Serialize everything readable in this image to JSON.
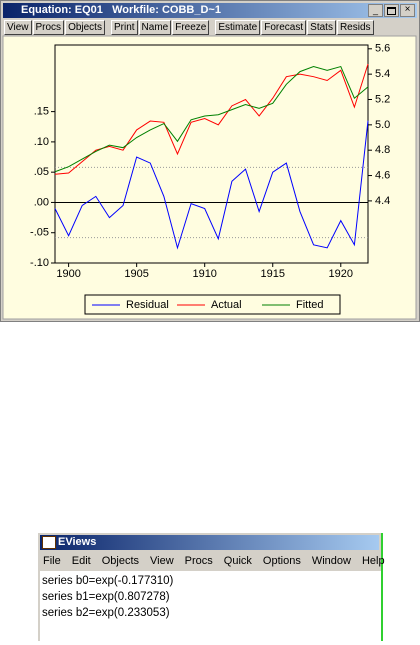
{
  "window": {
    "title": "Equation: EQ01   Workfile: COBB_D~1",
    "buttons": [
      "View",
      "Procs",
      "Objects",
      "Print",
      "Name",
      "Freeze",
      "Estimate",
      "Forecast",
      "Stats",
      "Resids"
    ]
  },
  "chart_data": {
    "type": "line",
    "x": [
      1899,
      1900,
      1901,
      1902,
      1903,
      1904,
      1905,
      1906,
      1907,
      1908,
      1909,
      1910,
      1911,
      1912,
      1913,
      1914,
      1915,
      1916,
      1917,
      1918,
      1919,
      1920,
      1921,
      1922
    ],
    "series": [
      {
        "name": "Residual",
        "color": "#0000ff",
        "axis": "y",
        "values": [
          -0.01,
          -0.055,
          -0.005,
          0.01,
          -0.025,
          -0.005,
          0.075,
          0.065,
          0.01,
          -0.075,
          -0.002,
          -0.01,
          -0.06,
          0.035,
          0.055,
          -0.015,
          0.05,
          0.065,
          -0.015,
          -0.07,
          -0.075,
          -0.03,
          -0.07,
          0.135
        ]
      },
      {
        "name": "Actual",
        "color": "#ff0000",
        "axis": "y2",
        "values": [
          4.61,
          4.62,
          4.71,
          4.8,
          4.83,
          4.8,
          4.96,
          5.03,
          5.02,
          4.77,
          5.02,
          5.05,
          5.0,
          5.15,
          5.2,
          5.07,
          5.21,
          5.38,
          5.4,
          5.38,
          5.35,
          5.43,
          5.14,
          5.48
        ]
      },
      {
        "name": "Fitted",
        "color": "#008000",
        "axis": "y2",
        "values": [
          4.63,
          4.67,
          4.73,
          4.79,
          4.84,
          4.82,
          4.9,
          4.96,
          5.01,
          4.87,
          5.04,
          5.07,
          5.08,
          5.12,
          5.16,
          5.13,
          5.17,
          5.32,
          5.42,
          5.46,
          5.43,
          5.46,
          5.21,
          5.3
        ]
      }
    ],
    "xlim": [
      1899,
      1922
    ],
    "xticks": [
      1900,
      1905,
      1910,
      1915,
      1920
    ],
    "ylim": [
      -0.1,
      0.26
    ],
    "yticks": [
      {
        "value": -0.1,
        "label": "-.10"
      },
      {
        "value": -0.05,
        "label": "-.05"
      },
      {
        "value": 0,
        "label": ".00"
      },
      {
        "value": 0.05,
        "label": ".05"
      },
      {
        "value": 0.1,
        "label": ".10"
      },
      {
        "value": 0.15,
        "label": ".15"
      }
    ],
    "y2lim": [
      3.91,
      5.63
    ],
    "y2ticks": [
      4.4,
      4.6,
      4.8,
      {
        "value": 5,
        "label": "5.0"
      },
      5.2,
      5.4,
      5.6
    ],
    "reference_lines": [
      -0.058,
      0,
      0.058
    ],
    "legend": "bottom"
  },
  "main_window": {
    "title": "EViews",
    "menu": [
      "File",
      "Edit",
      "Objects",
      "View",
      "Procs",
      "Quick",
      "Options",
      "Window",
      "Help"
    ],
    "lines": [
      "series b0=exp(-0.177310)",
      "series b1=exp(0.807278)",
      "series b2=exp(0.233053)"
    ]
  }
}
